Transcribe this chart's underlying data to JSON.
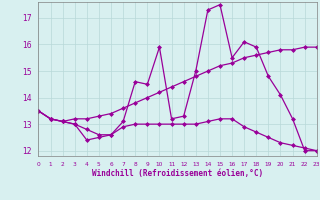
{
  "xlabel": "Windchill (Refroidissement éolien,°C)",
  "x": [
    0,
    1,
    2,
    3,
    4,
    5,
    6,
    7,
    8,
    9,
    10,
    11,
    12,
    13,
    14,
    15,
    16,
    17,
    18,
    19,
    20,
    21,
    22,
    23
  ],
  "line1": [
    13.5,
    13.2,
    13.1,
    13.0,
    12.8,
    12.6,
    12.6,
    13.1,
    14.6,
    14.5,
    15.9,
    13.2,
    13.3,
    15.0,
    17.3,
    17.5,
    15.5,
    16.1,
    15.9,
    14.8,
    14.1,
    13.2,
    12.0,
    12.0
  ],
  "line2": [
    13.5,
    13.2,
    13.1,
    13.2,
    13.2,
    13.3,
    13.4,
    13.6,
    13.8,
    14.0,
    14.2,
    14.4,
    14.6,
    14.8,
    15.0,
    15.2,
    15.3,
    15.5,
    15.6,
    15.7,
    15.8,
    15.8,
    15.9,
    15.9
  ],
  "line3": [
    13.5,
    13.2,
    13.1,
    13.0,
    12.4,
    12.5,
    12.6,
    12.9,
    13.0,
    13.0,
    13.0,
    13.0,
    13.0,
    13.0,
    13.1,
    13.2,
    13.2,
    12.9,
    12.7,
    12.5,
    12.3,
    12.2,
    12.1,
    12.0
  ],
  "color": "#990099",
  "bg_color": "#d8f0f0",
  "grid_color": "#b8d8d8",
  "ylim": [
    11.8,
    17.6
  ],
  "yticks": [
    12,
    13,
    14,
    15,
    16,
    17
  ],
  "xlim": [
    0,
    23
  ]
}
